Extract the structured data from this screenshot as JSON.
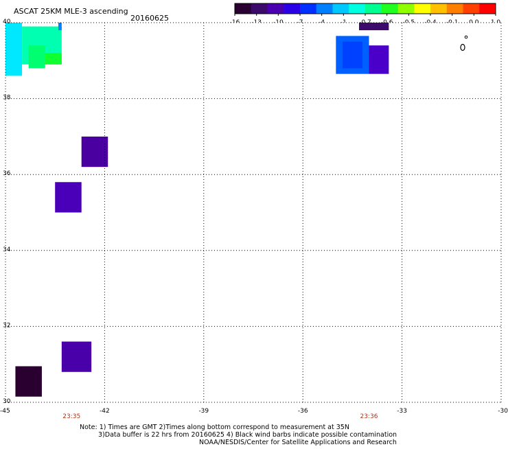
{
  "header": {
    "title": "ASCAT 25KM MLE-3 ascending",
    "date": "20160625"
  },
  "colorbar": {
    "colors": [
      "#2a0030",
      "#3c0a6b",
      "#4a00b0",
      "#2a00e6",
      "#0030ff",
      "#0080ff",
      "#00c8ff",
      "#00ffe0",
      "#00ff90",
      "#20ff20",
      "#90ff00",
      "#ffff00",
      "#ffc000",
      "#ff8000",
      "#ff4000",
      "#ff0000"
    ],
    "labels": [
      "-16",
      "-13",
      "-10",
      "-7",
      "-4",
      "-1",
      "-0.7",
      "-0.6",
      "-0.5",
      "-0.4",
      "-0.1",
      "0.0",
      "1.0"
    ]
  },
  "map": {
    "lon_range": [
      -45,
      -30
    ],
    "lat_range": [
      30,
      40
    ],
    "lon_ticks": [
      "-45",
      "-42",
      "-39",
      "-36",
      "-33",
      "-30"
    ],
    "lat_ticks": [
      "40",
      "38",
      "36",
      "34",
      "32",
      "30"
    ],
    "time_labels": [
      {
        "text": "23:35",
        "lon": -43.0
      },
      {
        "text": "23:36",
        "lon": -34.0
      }
    ],
    "cells": [
      {
        "lon0": -45.0,
        "lon1": -44.5,
        "lat0": 38.6,
        "lat1": 40.0,
        "color": "#00e8ff"
      },
      {
        "lon0": -44.5,
        "lon1": -43.3,
        "lat0": 38.9,
        "lat1": 39.9,
        "color": "#00ffb0"
      },
      {
        "lon0": -44.3,
        "lon1": -43.8,
        "lat0": 38.8,
        "lat1": 39.4,
        "color": "#00ff70"
      },
      {
        "lon0": -43.8,
        "lon1": -43.3,
        "lat0": 38.9,
        "lat1": 39.2,
        "color": "#10ff30"
      },
      {
        "lon0": -43.4,
        "lon1": -43.3,
        "lat0": 39.8,
        "lat1": 40.0,
        "color": "#0080ff"
      },
      {
        "lon0": -35.0,
        "lon1": -34.0,
        "lat0": 38.65,
        "lat1": 39.65,
        "color": "#0060ff"
      },
      {
        "lon0": -34.8,
        "lon1": -34.2,
        "lat0": 38.8,
        "lat1": 39.5,
        "color": "#0040ff"
      },
      {
        "lon0": -34.0,
        "lon1": -33.4,
        "lat0": 38.65,
        "lat1": 39.4,
        "color": "#4a00c8"
      },
      {
        "lon0": -34.3,
        "lon1": -33.4,
        "lat0": 39.8,
        "lat1": 40.0,
        "color": "#3c0a6b"
      },
      {
        "lon0": -42.7,
        "lon1": -41.9,
        "lat0": 36.2,
        "lat1": 37.0,
        "color": "#4a00a0"
      },
      {
        "lon0": -43.5,
        "lon1": -42.7,
        "lat0": 35.0,
        "lat1": 35.8,
        "color": "#4a00b8"
      },
      {
        "lon0": -43.3,
        "lon1": -42.4,
        "lat0": 30.8,
        "lat1": 31.6,
        "color": "#4a00a8"
      },
      {
        "lon0": -44.7,
        "lon1": -43.9,
        "lat0": 30.15,
        "lat1": 30.95,
        "color": "#2a0030"
      }
    ]
  },
  "notes": {
    "line1": "Note: 1) Times are GMT 2)Times along bottom correspond to measurement at 35N",
    "line2": "3)Data buffer is 22 hrs from 20160625 4) Black wind barbs indicate possible contamination",
    "line3": "NOAA/NESDIS/Center for Satellite Applications and Research"
  }
}
